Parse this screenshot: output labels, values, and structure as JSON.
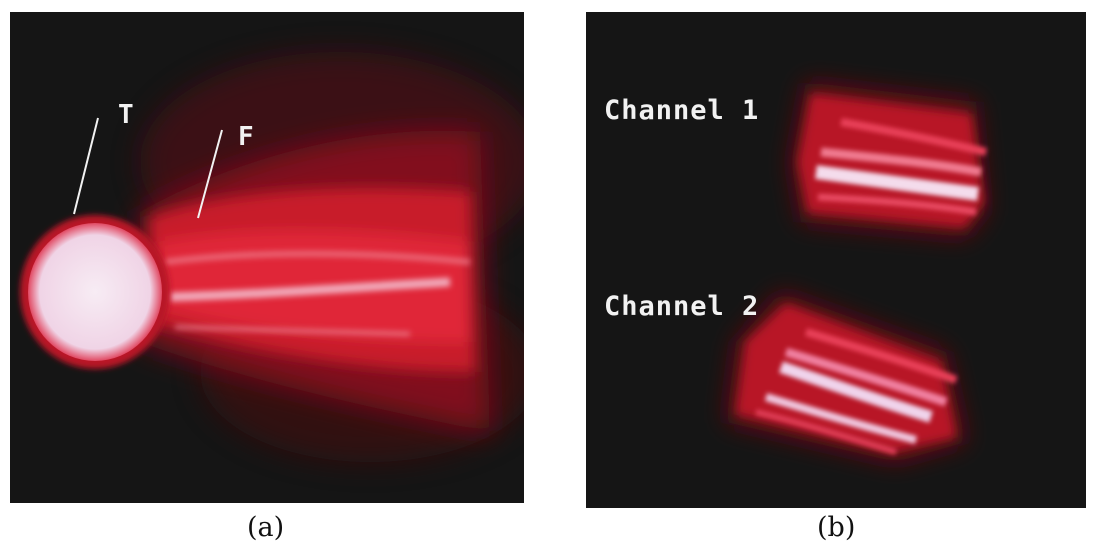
{
  "figure": {
    "panel_a": {
      "label_t": "T",
      "label_f": "F",
      "caption": "(a)"
    },
    "panel_b": {
      "channel_1": "Channel 1",
      "channel_2": "Channel 2",
      "caption": "(b)"
    }
  },
  "colors": {
    "background": "#151515",
    "plasma_red": "#d8202f",
    "hot_core": "#f4e6f2",
    "label_text": "#f2f2f2"
  }
}
